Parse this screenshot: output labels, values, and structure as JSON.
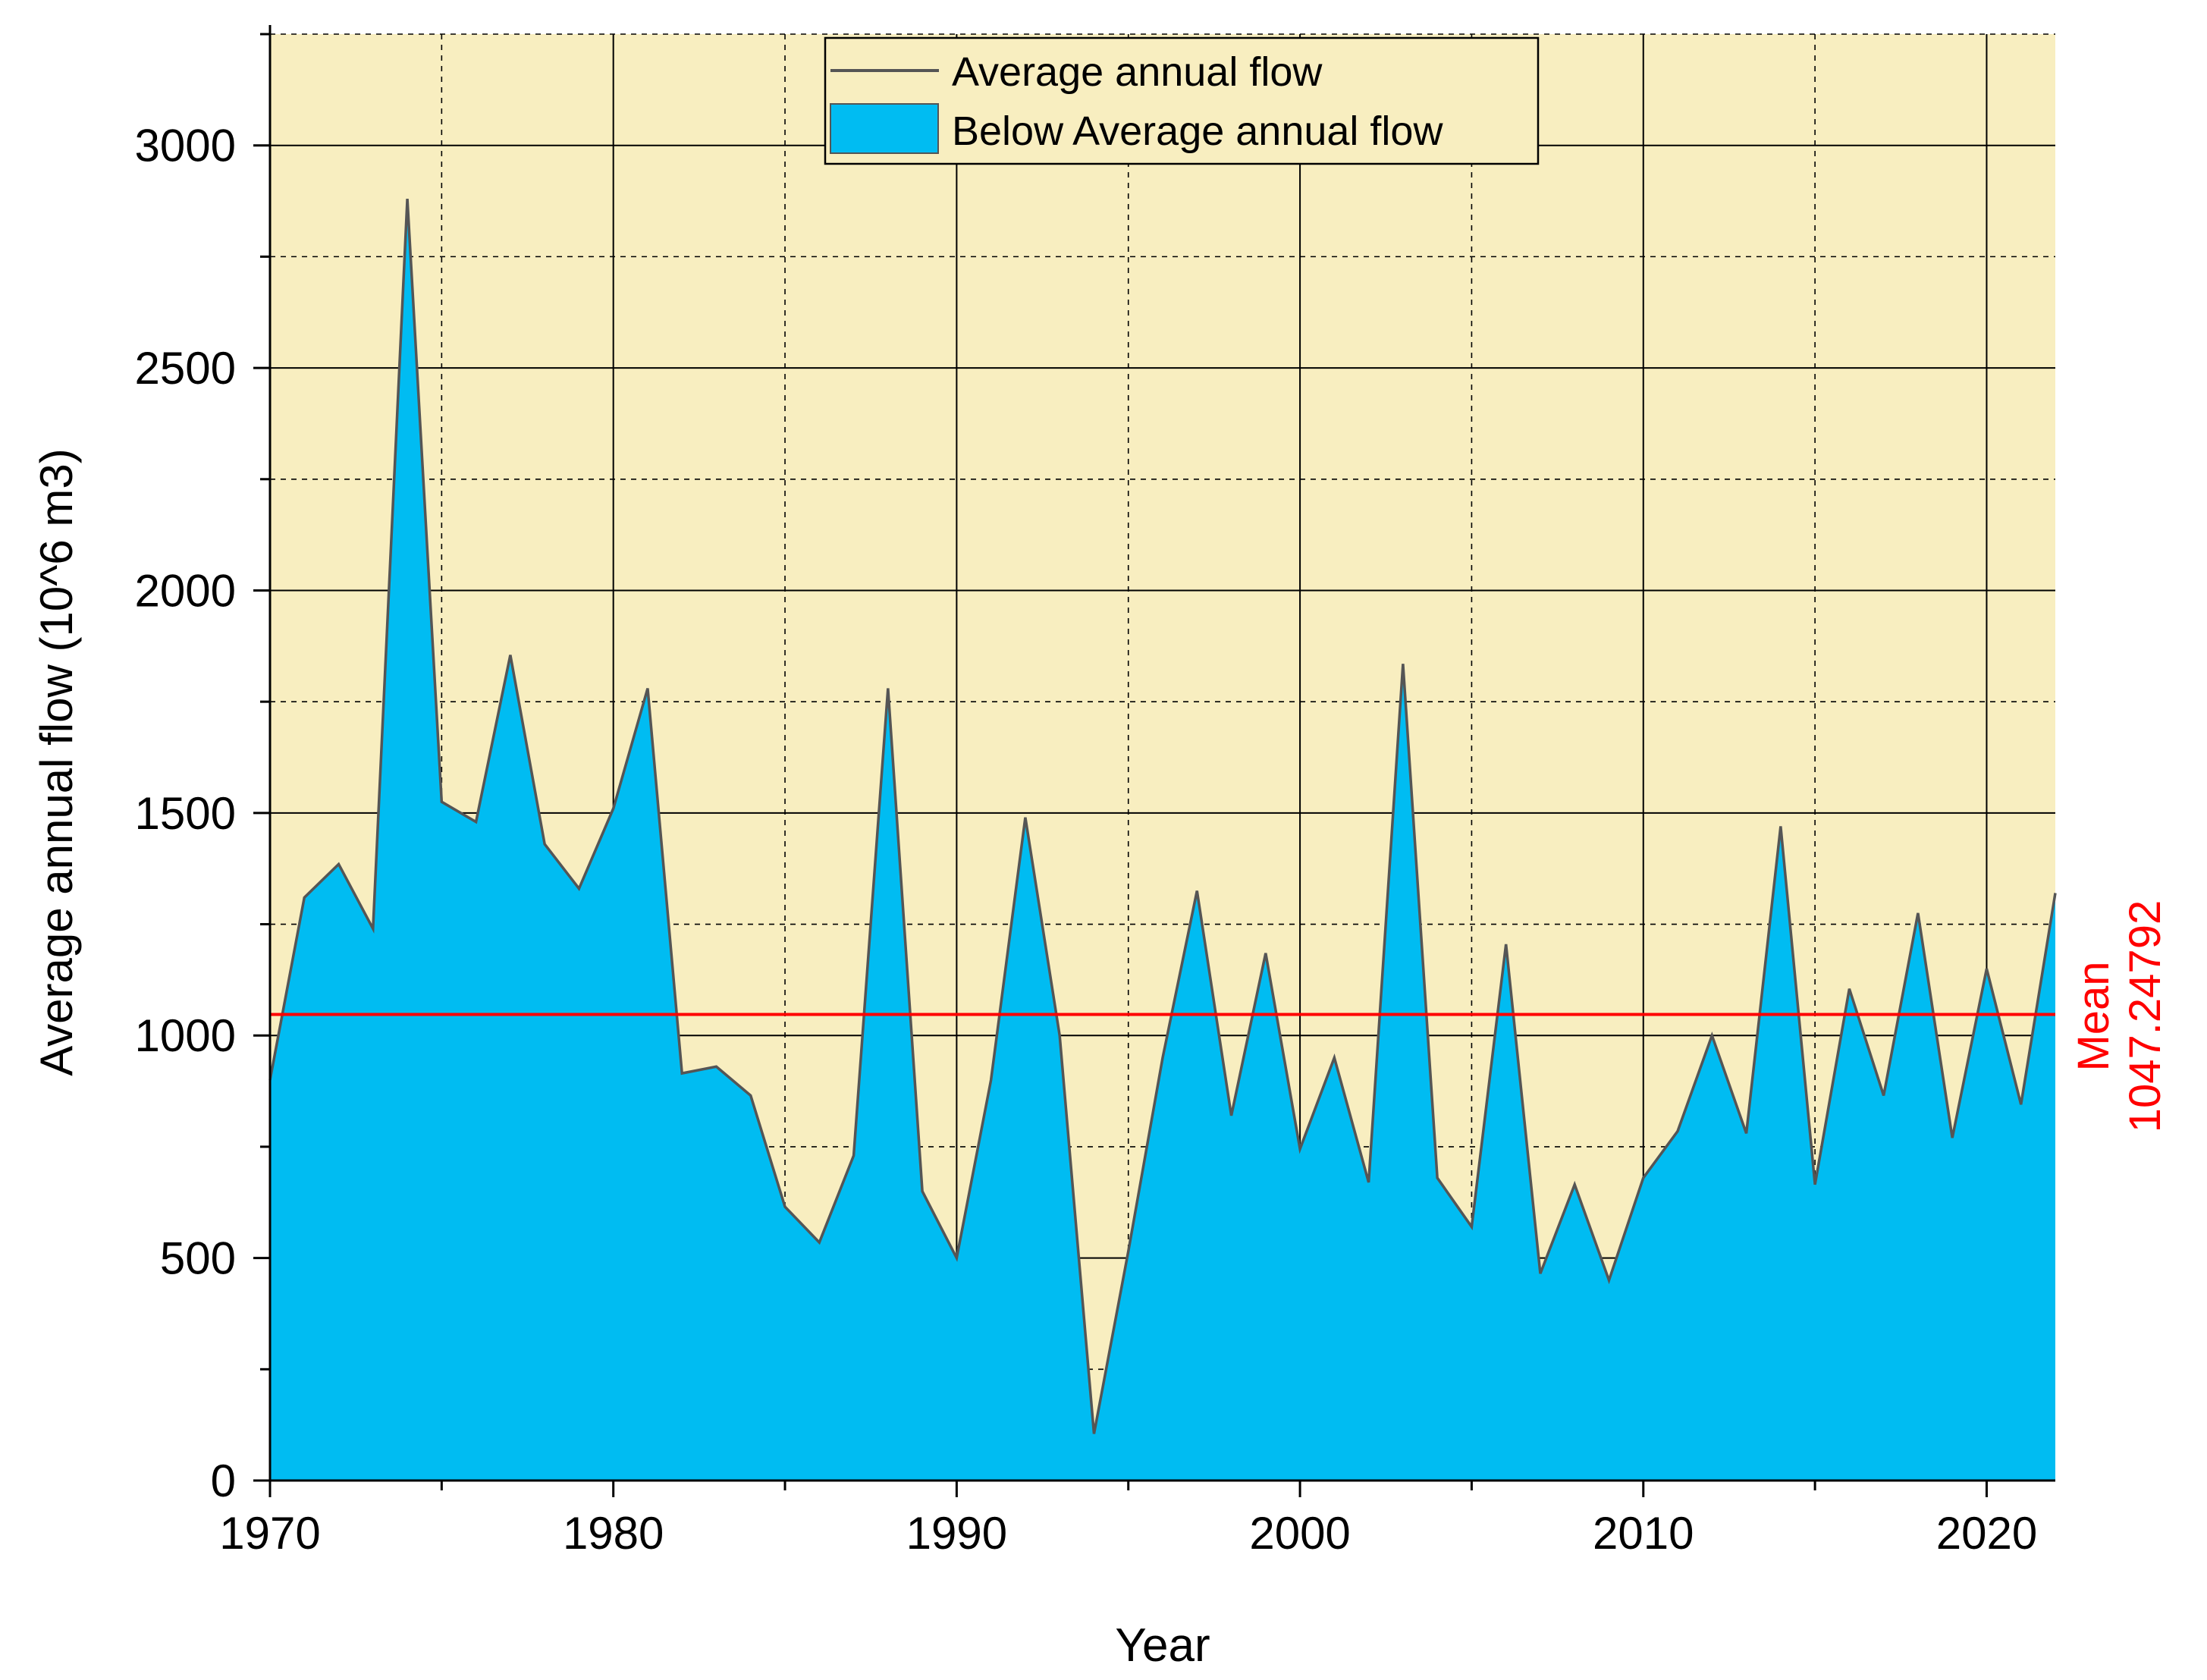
{
  "colors": {
    "plot_background": "#f8eec0",
    "area_fill": "#00bcf2",
    "line": "#555555",
    "mean_line": "#ff0000",
    "grid": "#000000"
  },
  "chart_data": {
    "type": "area",
    "title": "",
    "xlabel": "Year",
    "ylabel": "Average annual flow (10^6 m3)",
    "xlim": [
      1970,
      2022
    ],
    "ylim": [
      0,
      3250
    ],
    "x_ticks": [
      1970,
      1980,
      1990,
      2000,
      2010,
      2020
    ],
    "y_ticks": [
      0,
      500,
      1000,
      1500,
      2000,
      2500,
      3000
    ],
    "legend": {
      "position": "top",
      "entries": [
        "Average annual flow",
        "Below Average annual flow"
      ]
    },
    "mean": {
      "value": 1047.24792,
      "label_line1": "Mean",
      "label_line2": "1047.24792"
    },
    "x": [
      1970,
      1971,
      1972,
      1973,
      1974,
      1975,
      1976,
      1977,
      1978,
      1979,
      1980,
      1981,
      1982,
      1983,
      1984,
      1985,
      1986,
      1987,
      1988,
      1989,
      1990,
      1991,
      1992,
      1993,
      1994,
      1995,
      1996,
      1997,
      1998,
      1999,
      2000,
      2001,
      2002,
      2003,
      2004,
      2005,
      2006,
      2007,
      2008,
      2009,
      2010,
      2011,
      2012,
      2013,
      2014,
      2015,
      2016,
      2017,
      2018,
      2019,
      2020,
      2021,
      2022
    ],
    "series": [
      {
        "name": "Average annual flow",
        "values": [
          900,
          1310,
          1385,
          1240,
          2880,
          1525,
          1480,
          1855,
          1430,
          1330,
          1510,
          1780,
          915,
          930,
          865,
          615,
          535,
          730,
          1780,
          650,
          500,
          900,
          1490,
          1000,
          105,
          515,
          950,
          1325,
          820,
          1185,
          745,
          950,
          670,
          1835,
          680,
          570,
          1205,
          465,
          665,
          450,
          680,
          785,
          1000,
          780,
          1470,
          665,
          1105,
          865,
          1275,
          770,
          1150,
          845,
          1320
        ]
      }
    ]
  }
}
